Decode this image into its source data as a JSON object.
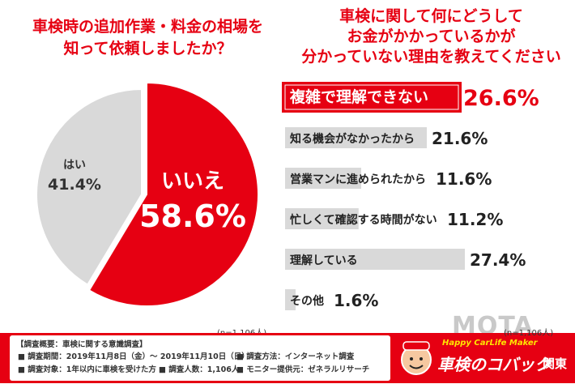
{
  "left_chart": {
    "title_line1": "車検時の追加作業・料金の相場を",
    "title_line2": "知って依頼しましたか？",
    "n_note": "(n=1,106人)"
  },
  "right_chart": {
    "title_line1": "車検に関して何にどうして",
    "title_line2": "お金がかかっているかが",
    "title_line3": "分かっていない理由を教えてください",
    "n_note": "(n=1,106人)"
  },
  "colors": {
    "red": "#e60012",
    "gray": "#d9d9d9",
    "text": "#222222"
  },
  "chart_data": [
    {
      "type": "pie",
      "title": "車検時の追加作業・料金の相場を知って依頼しましたか？",
      "labels": [
        "いいえ",
        "はい"
      ],
      "values": [
        58.6,
        41.4
      ],
      "value_labels": [
        "58.6%",
        "41.4%"
      ],
      "colors": [
        "#e60012",
        "#d9d9d9"
      ]
    },
    {
      "type": "bar",
      "orientation": "horizontal",
      "title": "車検に関して何にどうしてお金がかかっているかが分かっていない理由を教えてください",
      "categories": [
        "複雑で理解できない",
        "知る機会がなかったから",
        "営業マンに進められたから",
        "忙しくて確認する時間がない",
        "理解している",
        "その他"
      ],
      "values": [
        26.6,
        21.6,
        11.6,
        11.2,
        27.4,
        1.6
      ],
      "value_labels": [
        "26.6%",
        "21.6%",
        "11.6%",
        "11.2%",
        "27.4%",
        "1.6%"
      ],
      "highlight_index": 0,
      "xlim": [
        0,
        27.4
      ]
    }
  ],
  "footer": {
    "heading": "【調査概要：車検に関する意識調査】",
    "period": "■ 調査期間：2019年11月8日（金）～ 2019年11月10日（日）",
    "target": "■ 調査対象：1年以内に車検を受けた方",
    "sample": "■ 調査人数：1,106人",
    "method": "■ 調査方法：インターネット調査",
    "monitor": "■ モニター提供元：ゼネラルリサーチ",
    "brand_tagline": "Happy CarLife Maker",
    "brand_name": "車検のコバック",
    "brand_region": "関東"
  },
  "watermark": "MOTA"
}
